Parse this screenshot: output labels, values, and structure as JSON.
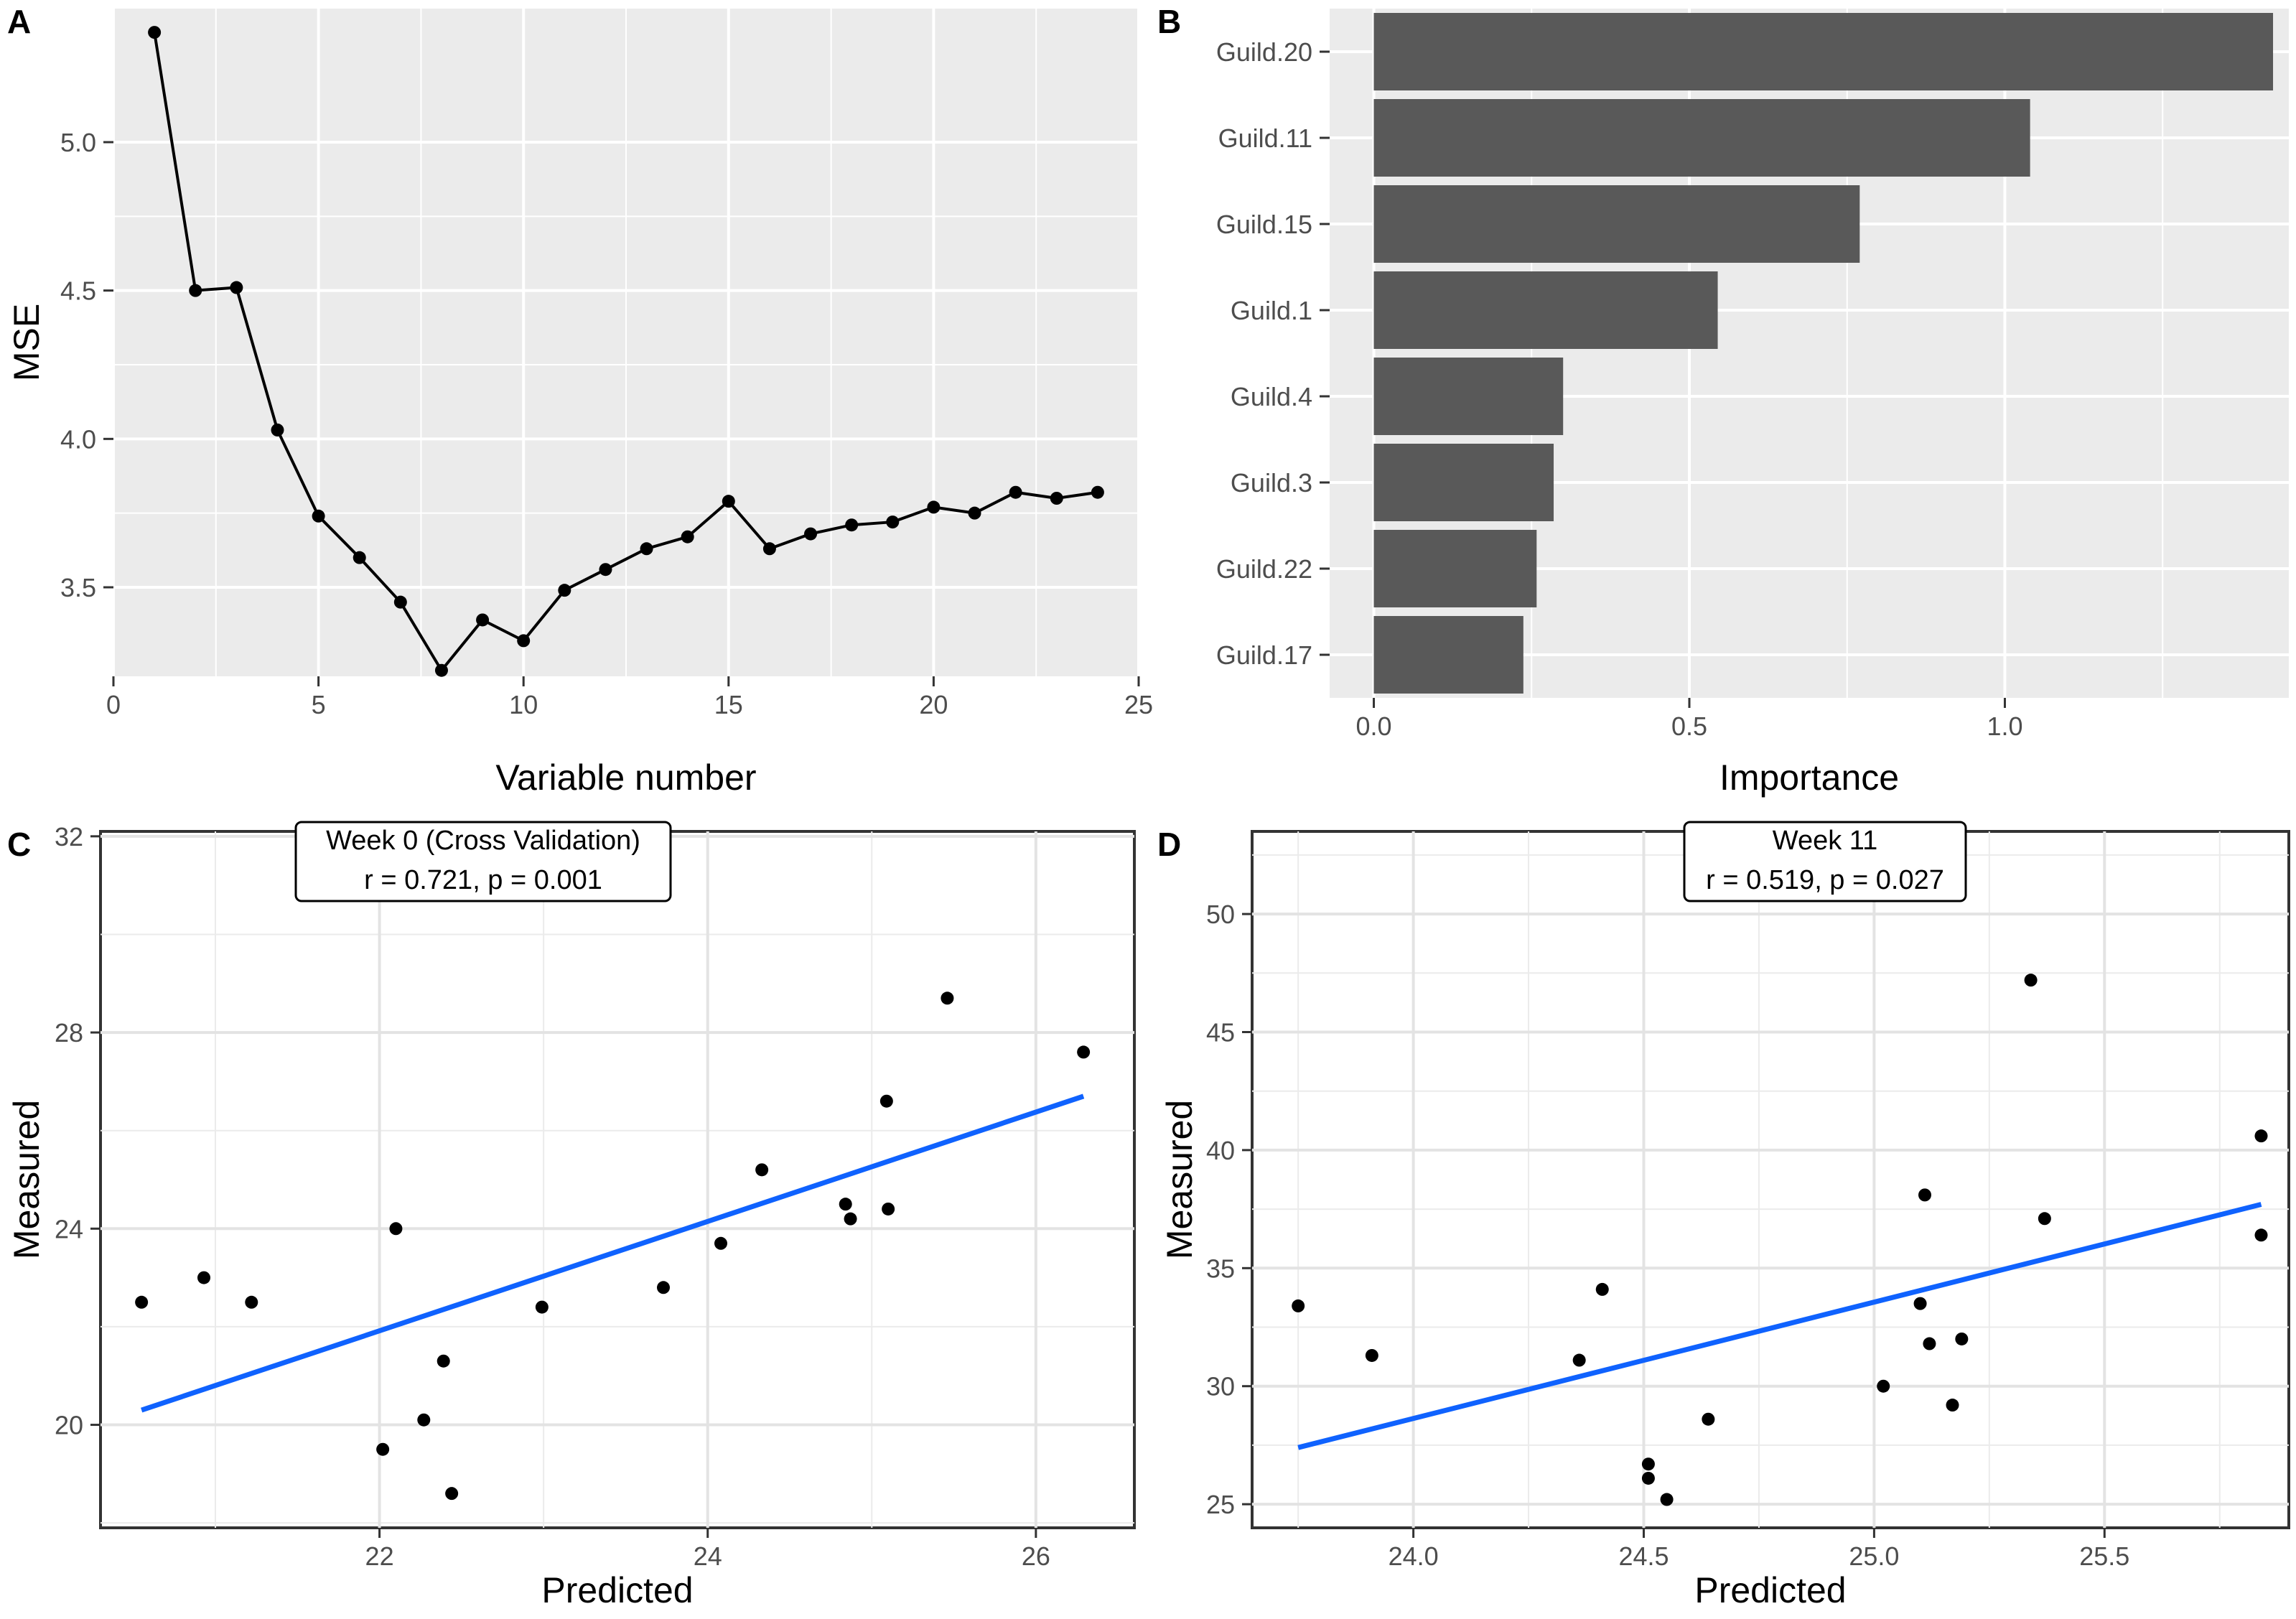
{
  "chart_data": [
    {
      "panel": "A",
      "type": "line",
      "title": "",
      "xlabel": "Variable number",
      "ylabel": "MSE",
      "xlim": [
        0,
        25
      ],
      "ylim": [
        3.2,
        5.45
      ],
      "xticks": [
        0,
        5,
        10,
        15,
        20,
        25
      ],
      "yticks": [
        3.5,
        4.0,
        4.5,
        5.0
      ],
      "ytick_labels": [
        "3.5",
        "4.0",
        "4.5",
        "5.0"
      ],
      "x": [
        1,
        2,
        3,
        4,
        5,
        6,
        7,
        8,
        9,
        10,
        11,
        12,
        13,
        14,
        15,
        16,
        17,
        18,
        19,
        20,
        21,
        22,
        23,
        24
      ],
      "y": [
        5.37,
        4.5,
        4.51,
        4.03,
        3.74,
        3.6,
        3.45,
        3.22,
        3.39,
        3.32,
        3.49,
        3.56,
        3.63,
        3.67,
        3.79,
        3.63,
        3.68,
        3.71,
        3.72,
        3.77,
        3.75,
        3.82,
        3.8,
        3.82
      ],
      "grid": true
    },
    {
      "panel": "B",
      "type": "bar",
      "orientation": "horizontal",
      "xlabel": "Importance",
      "ylabel": "",
      "xlim": [
        -0.07,
        1.45
      ],
      "xticks": [
        0.0,
        0.5,
        1.0
      ],
      "xtick_labels": [
        "0.0",
        "0.5",
        "1.0"
      ],
      "categories": [
        "Guild.20",
        "Guild.11",
        "Guild.15",
        "Guild.1",
        "Guild.4",
        "Guild.3",
        "Guild.22",
        "Guild.17"
      ],
      "values": [
        1.425,
        1.04,
        0.77,
        0.545,
        0.3,
        0.285,
        0.258,
        0.237
      ],
      "grid": true
    },
    {
      "panel": "C",
      "type": "scatter",
      "xlabel": "Predicted",
      "ylabel": "Measured",
      "xlim": [
        20.3,
        26.6
      ],
      "ylim": [
        17.9,
        32.1
      ],
      "xticks": [
        22,
        24,
        26
      ],
      "yticks": [
        20,
        24,
        28,
        32
      ],
      "x": [
        20.55,
        20.93,
        21.22,
        22.02,
        22.1,
        22.27,
        22.39,
        22.44,
        22.99,
        23.73,
        24.08,
        24.33,
        24.84,
        24.87,
        25.09,
        25.1,
        25.46,
        26.29
      ],
      "y": [
        22.5,
        23.0,
        22.5,
        19.5,
        24.0,
        20.1,
        21.3,
        18.6,
        22.4,
        22.8,
        23.7,
        25.2,
        24.5,
        24.2,
        26.6,
        24.4,
        28.7,
        27.6
      ],
      "fit_line": {
        "x": [
          20.55,
          26.29
        ],
        "y": [
          20.3,
          26.7
        ],
        "color": "#0F62FE"
      },
      "annotation": [
        "Week 0 (Cross Validation)",
        "r = 0.721, p = 0.001"
      ],
      "grid": true
    },
    {
      "panel": "D",
      "type": "scatter",
      "xlabel": "Predicted",
      "ylabel": "Measured",
      "xlim": [
        23.65,
        25.9
      ],
      "ylim": [
        24.0,
        53.5
      ],
      "xticks": [
        24.0,
        24.5,
        25.0,
        25.5
      ],
      "xtick_labels": [
        "24.0",
        "24.5",
        "25.0",
        "25.5"
      ],
      "yticks": [
        25,
        30,
        35,
        40,
        45,
        50
      ],
      "x": [
        23.75,
        23.91,
        24.36,
        24.41,
        24.51,
        24.51,
        24.55,
        24.64,
        25.02,
        25.1,
        25.11,
        25.12,
        25.17,
        25.19,
        25.34,
        25.37,
        25.84,
        25.84
      ],
      "y": [
        33.4,
        31.3,
        31.1,
        34.1,
        26.7,
        26.1,
        25.2,
        28.6,
        30.0,
        33.5,
        38.1,
        31.8,
        29.2,
        32.0,
        47.2,
        37.1,
        40.6,
        36.4
      ],
      "fit_line": {
        "x": [
          23.75,
          25.84
        ],
        "y": [
          27.4,
          37.7
        ],
        "color": "#0F62FE"
      },
      "annotation": [
        "Week 11",
        "r = 0.519, p = 0.027"
      ],
      "grid": true
    }
  ]
}
